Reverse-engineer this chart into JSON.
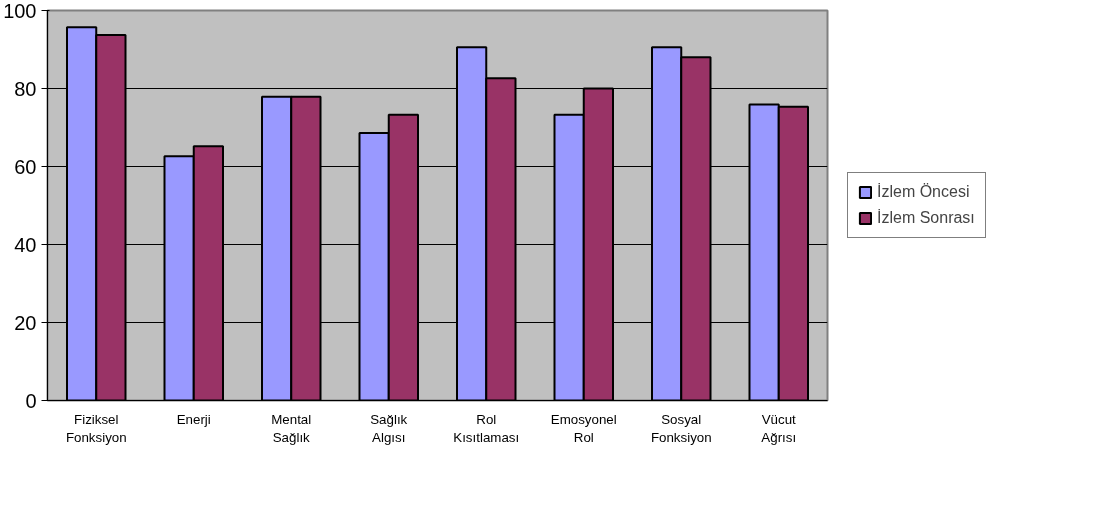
{
  "chart_data": {
    "type": "bar",
    "categories": [
      "Fiziksel\nFonksiyon",
      "Enerji",
      "Mental\nSağlık",
      "Sağlık\nAlgısı",
      "Rol\nKısıtlaması",
      "Emosyonel\nRol",
      "Sosyal\nFonksiyon",
      "Vücut\nAğrısı"
    ],
    "series": [
      {
        "name": "İzlem Öncesi",
        "color": "#9999ff",
        "values": [
          95.7,
          62.6,
          77.9,
          68.6,
          90.6,
          73.3,
          90.6,
          75.9
        ]
      },
      {
        "name": "İzlem Sonrası",
        "color": "#993366",
        "values": [
          93.7,
          65.2,
          77.9,
          73.3,
          82.6,
          80.0,
          88.0,
          75.3
        ]
      }
    ],
    "ylim": [
      0,
      100
    ],
    "yticks": [
      0,
      20,
      40,
      60,
      80,
      100
    ],
    "grid": "y",
    "legend": "right"
  }
}
